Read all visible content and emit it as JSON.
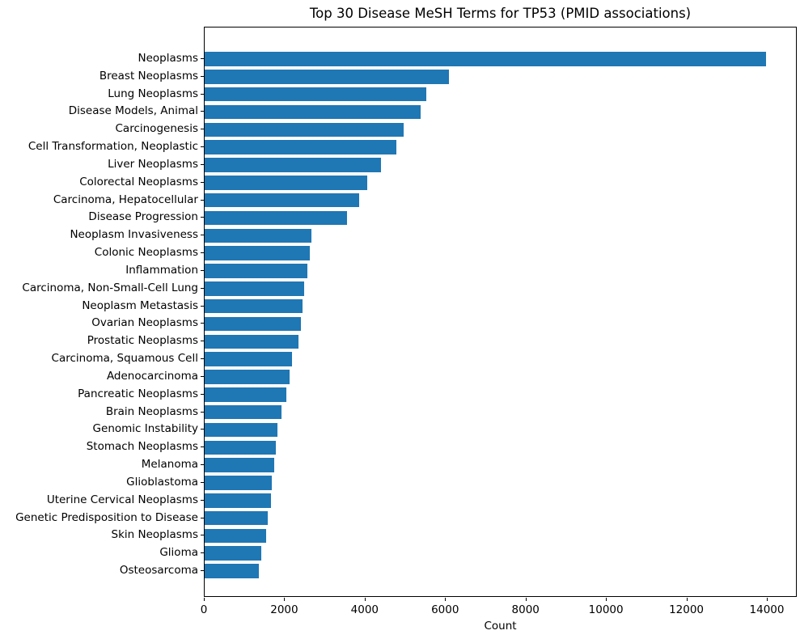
{
  "chart_data": {
    "type": "bar",
    "orientation": "horizontal",
    "title": "Top 30 Disease MeSH Terms for TP53 (PMID associations)",
    "xlabel": "Count",
    "ylabel": "",
    "bar_color": "#1f77b4",
    "grid": false,
    "legend": null,
    "xlim": [
      0,
      14740
    ],
    "xticks": [
      0,
      2000,
      4000,
      6000,
      8000,
      10000,
      12000,
      14000
    ],
    "categories": [
      "Neoplasms",
      "Breast Neoplasms",
      "Lung Neoplasms",
      "Disease Models, Animal",
      "Carcinogenesis",
      "Cell Transformation, Neoplastic",
      "Liver Neoplasms",
      "Colorectal Neoplasms",
      "Carcinoma, Hepatocellular",
      "Disease Progression",
      "Neoplasm Invasiveness",
      "Colonic Neoplasms",
      "Inflammation",
      "Carcinoma, Non-Small-Cell Lung",
      "Neoplasm Metastasis",
      "Ovarian Neoplasms",
      "Prostatic Neoplasms",
      "Carcinoma, Squamous Cell",
      "Adenocarcinoma",
      "Pancreatic Neoplasms",
      "Brain Neoplasms",
      "Genomic Instability",
      "Stomach Neoplasms",
      "Melanoma",
      "Glioblastoma",
      "Uterine Cervical Neoplasms",
      "Genetic Predisposition to Disease",
      "Skin Neoplasms",
      "Glioma",
      "Osteosarcoma"
    ],
    "values": [
      13960,
      6080,
      5510,
      5380,
      4950,
      4760,
      4390,
      4040,
      3840,
      3540,
      2660,
      2620,
      2550,
      2470,
      2430,
      2390,
      2340,
      2170,
      2120,
      2040,
      1910,
      1820,
      1780,
      1720,
      1670,
      1650,
      1570,
      1530,
      1410,
      1340
    ]
  }
}
